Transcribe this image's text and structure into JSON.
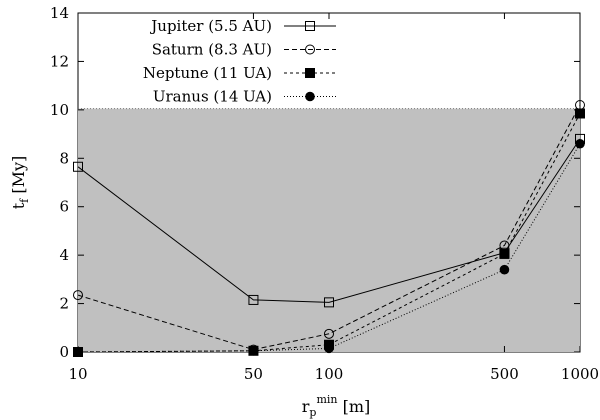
{
  "chart_data": {
    "type": "line",
    "title": "",
    "xlabel": {
      "main": "r",
      "sub": "p",
      "sup": "min",
      "unit": "[m]"
    },
    "ylabel": {
      "main": "t",
      "sub": "f",
      "unit": "[My]"
    },
    "xscale": "log",
    "xlim": [
      10,
      1000
    ],
    "ylim": [
      0,
      14
    ],
    "xticks": [
      10,
      50,
      100,
      500,
      1000
    ],
    "xtick_labels": [
      "10",
      "50",
      "100",
      "500",
      "1000"
    ],
    "yticks": [
      0,
      2,
      4,
      6,
      8,
      10,
      12,
      14
    ],
    "ytick_labels": [
      "0",
      "2",
      "4",
      "6",
      "8",
      "10",
      "12",
      "14"
    ],
    "shaded_region": {
      "y_from": 0,
      "y_to": 10.05,
      "color": "#c0c0c0"
    },
    "grid": false,
    "legend_position": "top-center",
    "x": [
      10,
      50,
      100,
      500,
      1000
    ],
    "series": [
      {
        "name": "Jupiter (5.5 AU)",
        "values": [
          7.65,
          2.15,
          2.05,
          4.1,
          8.8
        ],
        "marker": "open-square",
        "dash": "solid"
      },
      {
        "name": "Saturn (8.3 AU)",
        "values": [
          2.35,
          0.1,
          0.75,
          4.4,
          10.2
        ],
        "marker": "open-circle",
        "dash": "dashed"
      },
      {
        "name": "Neptune (11 UA)",
        "values": [
          0.0,
          0.05,
          0.3,
          4.05,
          9.85
        ],
        "marker": "filled-square",
        "dash": "short-dashed"
      },
      {
        "name": "Uranus (14 UA)",
        "values": [
          0.0,
          0.05,
          0.15,
          3.4,
          8.6
        ],
        "marker": "filled-circle",
        "dash": "dotted"
      }
    ]
  }
}
